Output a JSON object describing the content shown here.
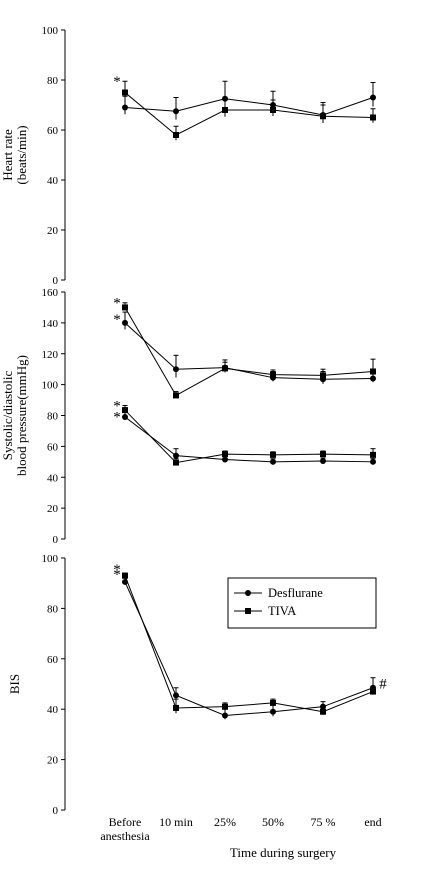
{
  "figure": {
    "xlabel": "Time during surgery",
    "categories": [
      "Before anesthesia",
      "10 min",
      "25%",
      "50%",
      "75 %",
      "end"
    ],
    "category_lines": [
      [
        "Before",
        "anesthesia"
      ],
      [
        "10 min"
      ],
      [
        "25%"
      ],
      [
        "50%"
      ],
      [
        "75 %"
      ],
      [
        "end"
      ]
    ]
  },
  "legend": {
    "items": [
      "Desflurane",
      "TIVA"
    ]
  },
  "chart_data": [
    {
      "type": "line",
      "ylabel": [
        "Heart rate",
        "(beats/min)"
      ],
      "ylim": [
        0,
        100
      ],
      "yticks": [
        0,
        20,
        40,
        60,
        80,
        100
      ],
      "series": [
        {
          "name": "Desflurane",
          "marker": "circle",
          "values": [
            69,
            67.5,
            72.5,
            70,
            66,
            73
          ],
          "err": [
            4.5,
            5.5,
            7,
            5.5,
            5,
            6
          ]
        },
        {
          "name": "TIVA",
          "marker": "square",
          "values": [
            75,
            58,
            68,
            68,
            65.5,
            65
          ],
          "err": [
            4.5,
            3.5,
            4.5,
            4,
            4.5,
            3.5
          ]
        }
      ],
      "annotations": [
        {
          "text": "*",
          "category": "Before anesthesia",
          "y": 80
        }
      ]
    },
    {
      "type": "line",
      "ylabel": [
        "Systolic/diastolic",
        "blood pressure(mmHg)"
      ],
      "ylim": [
        0,
        160
      ],
      "yticks": [
        0,
        20,
        40,
        60,
        80,
        100,
        120,
        140,
        160
      ],
      "series": [
        {
          "name": "Desflurane systolic",
          "marker": "circle",
          "values": [
            140,
            110,
            111,
            104.5,
            103.5,
            104
          ],
          "err": [
            7,
            9,
            5,
            4,
            5,
            4
          ]
        },
        {
          "name": "TIVA systolic",
          "marker": "square",
          "values": [
            150,
            93,
            110.5,
            106.5,
            106,
            108.5
          ],
          "err": [
            3,
            2.5,
            4,
            3,
            4,
            8
          ]
        },
        {
          "name": "Desflurane diastolic",
          "marker": "circle",
          "values": [
            79,
            54,
            51.5,
            50,
            50.5,
            50
          ],
          "err": [
            3,
            4.5,
            2,
            2,
            2,
            2
          ]
        },
        {
          "name": "TIVA diastolic",
          "marker": "square",
          "values": [
            83.5,
            49.5,
            55,
            54.5,
            55,
            54.5
          ],
          "err": [
            3,
            2.5,
            2,
            2,
            2,
            4
          ]
        }
      ],
      "annotations": [
        {
          "text": "*",
          "category": "Before anesthesia",
          "y": 154
        },
        {
          "text": "*",
          "category": "Before anesthesia",
          "y": 143
        },
        {
          "text": "*",
          "category": "Before anesthesia",
          "y": 87
        },
        {
          "text": "*",
          "category": "Before anesthesia",
          "y": 80
        }
      ]
    },
    {
      "type": "line",
      "ylabel": [
        "BIS"
      ],
      "ylim": [
        0,
        100
      ],
      "yticks": [
        0,
        20,
        40,
        60,
        80,
        100
      ],
      "series": [
        {
          "name": "Desflurane",
          "marker": "circle",
          "values": [
            90.5,
            45.5,
            37.5,
            39,
            41,
            48.5
          ],
          "err": [
            1.5,
            3,
            2.5,
            3,
            2,
            4
          ]
        },
        {
          "name": "TIVA",
          "marker": "square",
          "values": [
            93,
            40.5,
            41,
            42.5,
            39,
            47
          ],
          "err": [
            1,
            3.5,
            1.5,
            1.5,
            2,
            2
          ]
        }
      ],
      "annotations": [
        {
          "text": "*",
          "category": "Before anesthesia",
          "y": 96
        },
        {
          "text": "*",
          "category": "Before anesthesia",
          "y": 94
        },
        {
          "text": "#",
          "category": "end",
          "y": 50.5
        }
      ],
      "legend": {
        "placement": "upper-right",
        "entries": [
          "Desflurane",
          "TIVA"
        ]
      }
    }
  ]
}
